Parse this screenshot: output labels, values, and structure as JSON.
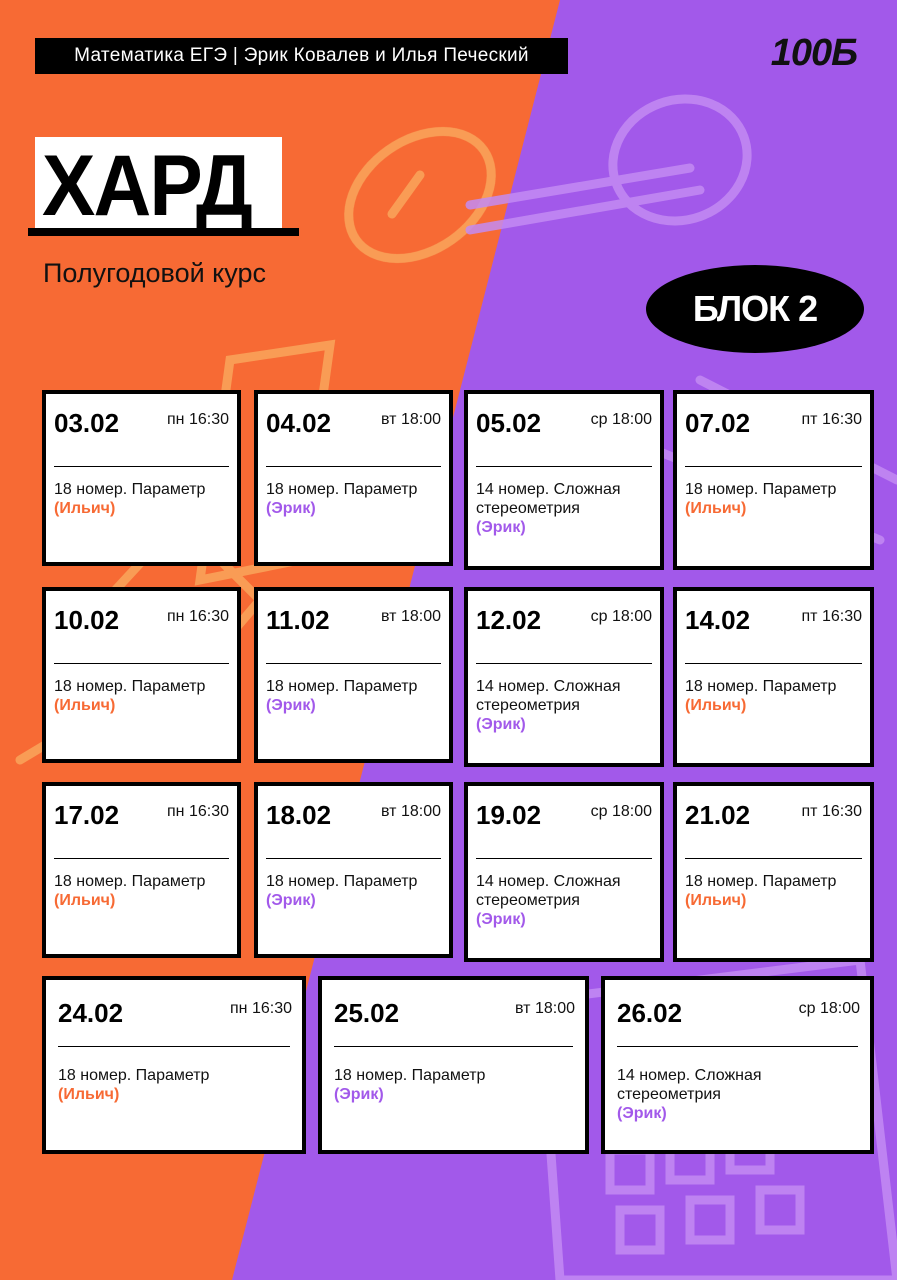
{
  "header": {
    "course_label": "Математика ЕГЭ | Эрик Ковалев и Илья Печеский",
    "logo": "100Б"
  },
  "title": "ХАРД",
  "subtitle": "Полугодовой курс",
  "block_badge": "БЛОК 2",
  "colors": {
    "orange": "#F76A34",
    "purple": "#A259EA",
    "ilyich": "#F76A34",
    "erik": "#A259EA"
  },
  "cards": [
    {
      "date": "03.02",
      "time": "пн 16:30",
      "topic": "18 номер. Параметр",
      "teacher": "(Ильич)"
    },
    {
      "date": "04.02",
      "time": "вт 18:00",
      "topic": "18 номер. Параметр",
      "teacher": "(Эрик)"
    },
    {
      "date": "05.02",
      "time": "ср 18:00",
      "topic": "14 номер. Сложная стереометрия",
      "teacher": "(Эрик)"
    },
    {
      "date": "07.02",
      "time": "пт 16:30",
      "topic": "18 номер. Параметр",
      "teacher": "(Ильич)"
    },
    {
      "date": "10.02",
      "time": "пн 16:30",
      "topic": "18 номер. Параметр",
      "teacher": "(Ильич)"
    },
    {
      "date": "11.02",
      "time": "вт 18:00",
      "topic": "18 номер. Параметр",
      "teacher": "(Эрик)"
    },
    {
      "date": "12.02",
      "time": "ср 18:00",
      "topic": "14 номер. Сложная стереометрия",
      "teacher": "(Эрик)"
    },
    {
      "date": "14.02",
      "time": "пт 16:30",
      "topic": "18 номер. Параметр",
      "teacher": "(Ильич)"
    },
    {
      "date": "17.02",
      "time": "пн 16:30",
      "topic": "18 номер. Параметр",
      "teacher": "(Ильич)"
    },
    {
      "date": "18.02",
      "time": "вт 18:00",
      "topic": "18 номер. Параметр",
      "teacher": "(Эрик)"
    },
    {
      "date": "19.02",
      "time": "ср 18:00",
      "topic": "14 номер. Сложная стереометрия",
      "teacher": "(Эрик)"
    },
    {
      "date": "21.02",
      "time": "пт 16:30",
      "topic": "18 номер. Параметр",
      "teacher": "(Ильич)"
    },
    {
      "date": "24.02",
      "time": "пн 16:30",
      "topic": "18 номер. Параметр",
      "teacher": "(Ильич)"
    },
    {
      "date": "25.02",
      "time": "вт 18:00",
      "topic": "18 номер. Параметр",
      "teacher": "(Эрик)"
    },
    {
      "date": "26.02",
      "time": "ср 18:00",
      "topic": "14 номер. Сложная стереометрия",
      "teacher": "(Эрик)"
    }
  ]
}
